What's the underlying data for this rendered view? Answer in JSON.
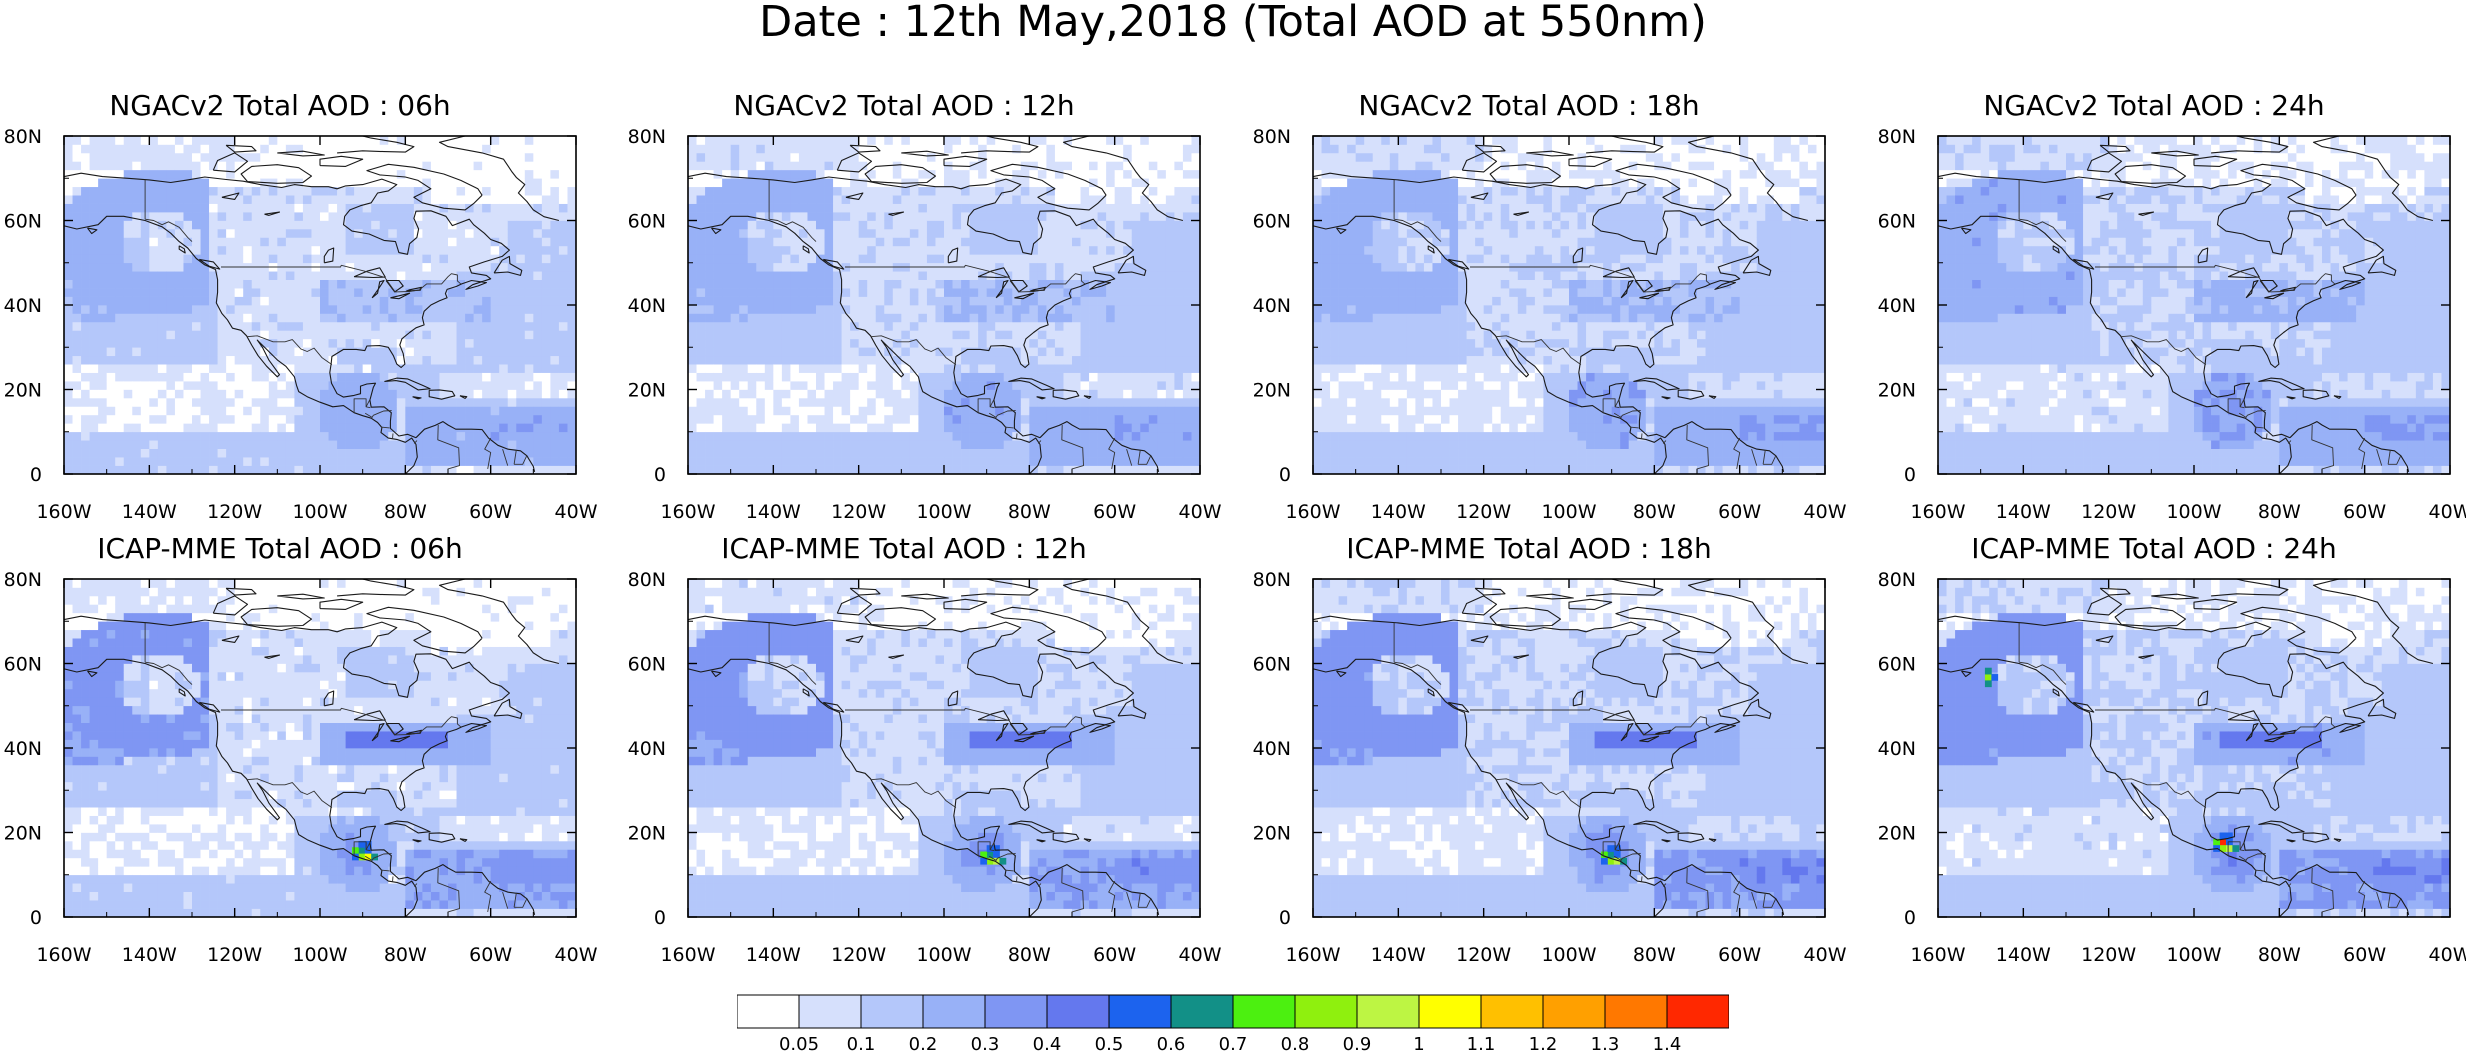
{
  "title": "Date : 12th May,2018 (Total AOD at 550nm)",
  "chart_data": {
    "type": "heatmap",
    "variable": "Total AOD at 550nm",
    "date": "12th May,2018",
    "projection": "cylindrical equidistant, map region 160W-40W, 0-80N",
    "lon_ticks": [
      "160W",
      "140W",
      "120W",
      "100W",
      "80W",
      "60W",
      "40W"
    ],
    "lat_ticks": [
      "0",
      "20N",
      "40N",
      "60N",
      "80N"
    ],
    "xlim": [
      -160,
      -40
    ],
    "ylim": [
      0,
      80
    ],
    "colorbar": {
      "levels": [
        "0.05",
        "0.1",
        "0.2",
        "0.3",
        "0.4",
        "0.5",
        "0.6",
        "0.7",
        "0.8",
        "0.9",
        "1",
        "1.1",
        "1.2",
        "1.3",
        "1.4"
      ],
      "colors": [
        "#ffffff",
        "#d6e0fc",
        "#b4c7fa",
        "#98b1f7",
        "#7f96f3",
        "#6478ee",
        "#1c63ee",
        "#129087",
        "#4cf010",
        "#8ff00e",
        "#bdf543",
        "#ffff00",
        "#ffc000",
        "#ffa000",
        "#ff7800",
        "#ff2800"
      ],
      "orientation": "horizontal",
      "placement": "bottom-center"
    },
    "panels": [
      {
        "id": "ngac-06",
        "title": "NGACv2 Total AOD : 06h",
        "model": "NGACv2",
        "lead": "06h",
        "max_aod_bin": "0.3-0.4",
        "dust_plume": "weak",
        "hotspot": null,
        "alaska_plume": null
      },
      {
        "id": "ngac-12",
        "title": "NGACv2 Total AOD : 12h",
        "model": "NGACv2",
        "lead": "12h",
        "max_aod_bin": "0.3-0.4",
        "dust_plume": "weak",
        "hotspot": null,
        "alaska_plume": null
      },
      {
        "id": "ngac-18",
        "title": "NGACv2 Total AOD : 18h",
        "model": "NGACv2",
        "lead": "18h",
        "max_aod_bin": "0.3-0.4",
        "dust_plume": "weak",
        "hotspot": null,
        "alaska_plume": null
      },
      {
        "id": "ngac-24",
        "title": "NGACv2 Total AOD : 24h",
        "model": "NGACv2",
        "lead": "24h",
        "max_aod_bin": "0.3-0.4",
        "dust_plume": "weak",
        "hotspot": null,
        "alaska_plume": null
      },
      {
        "id": "icap-06",
        "title": "ICAP-MME Total AOD : 06h",
        "model": "ICAP-MME",
        "lead": "06h",
        "max_aod_bin": "0.9-1.1",
        "dust_plume": "strong",
        "hotspot": {
          "lon": -91,
          "lat": 15,
          "max_aod_bin": "0.9-1.1"
        },
        "alaska_plume": null
      },
      {
        "id": "icap-12",
        "title": "ICAP-MME Total AOD : 12h",
        "model": "ICAP-MME",
        "lead": "12h",
        "max_aod_bin": "0.8-1.0",
        "dust_plume": "strong",
        "hotspot": {
          "lon": -90,
          "lat": 14,
          "max_aod_bin": "0.8-1.0"
        },
        "alaska_plume": null
      },
      {
        "id": "icap-18",
        "title": "ICAP-MME Total AOD : 18h",
        "model": "ICAP-MME",
        "lead": "18h",
        "max_aod_bin": "0.8-0.9",
        "dust_plume": "strong",
        "hotspot": {
          "lon": -91,
          "lat": 14,
          "max_aod_bin": "0.8-0.9"
        },
        "alaska_plume": null
      },
      {
        "id": "icap-24",
        "title": "ICAP-MME Total AOD : 24h",
        "model": "ICAP-MME",
        "lead": "24h",
        "max_aod_bin": "1.4+",
        "dust_plume": "strong",
        "hotspot": {
          "lon": -94,
          "lat": 17,
          "max_aod_bin": "1.4+"
        },
        "alaska_plume": {
          "lon": -149,
          "lat": 56,
          "max_aod_bin": "0.8-0.9"
        }
      }
    ]
  }
}
